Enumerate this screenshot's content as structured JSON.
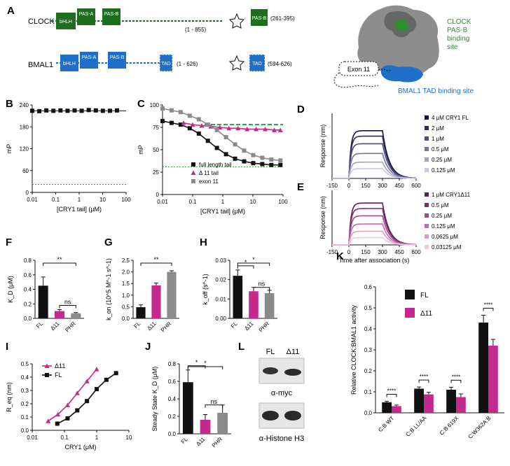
{
  "panels": {
    "A": {
      "letter": "A",
      "clock": {
        "label": "CLOCK",
        "domains": [
          "bHLH",
          "PAS-A",
          "PAS-B"
        ],
        "range": "(1 - 855)",
        "inset_domain": "PAS-B",
        "inset_range": "(261-395)"
      },
      "bmal1": {
        "label": "BMAL1",
        "domains": [
          "bHLH",
          "PAS-A",
          "PAS-B",
          "TAD"
        ],
        "range": "(1 - 626)",
        "inset_domain": "TAD",
        "inset_range": "(594-626)"
      },
      "structure": {
        "clock_site": [
          "CLOCK",
          "PAS-B",
          "binding",
          "site"
        ],
        "exon": "Exon 11",
        "bmal_site": "BMAL1 TAD binding site"
      }
    },
    "B": {
      "letter": "B"
    },
    "C": {
      "letter": "C"
    },
    "D": {
      "letter": "D"
    },
    "E": {
      "letter": "E"
    },
    "F": {
      "letter": "F"
    },
    "G": {
      "letter": "G"
    },
    "H": {
      "letter": "H"
    },
    "I": {
      "letter": "I"
    },
    "J": {
      "letter": "J"
    },
    "K": {
      "letter": "K"
    },
    "L": {
      "letter": "L",
      "cols": [
        "FL",
        "Δ11"
      ],
      "blot1": "α-myc",
      "blot2": "α-Histone H3"
    }
  },
  "colors": {
    "black": "#111111",
    "magenta": "#c42a8e",
    "gray": "#8a8a8a",
    "green": "#2f9a3a",
    "blue": "#2f7fd8",
    "clock_green": "#1f6e1f",
    "bmal_blue": "#1f6fc8"
  },
  "chart_data": [
    {
      "id": "B",
      "type": "scatter",
      "xscale": "log",
      "xlim": [
        0.01,
        100
      ],
      "ylim": [
        0,
        240
      ],
      "xticks": [
        "0.01",
        "0.1",
        "1",
        "10",
        "100"
      ],
      "yticks": [
        "0",
        "60",
        "120",
        "180",
        "240"
      ],
      "xlabel": "[CRY1 tail] (μM)",
      "ylabel": "mP",
      "series": [
        {
          "color": "#111111",
          "marker": "square",
          "x": [
            0.01,
            0.02,
            0.04,
            0.08,
            0.16,
            0.32,
            0.64,
            1.28,
            2.56,
            5.12,
            10.24,
            20.48,
            40.96
          ],
          "y": [
            224,
            223,
            225,
            224,
            225,
            224,
            225,
            224,
            226,
            225,
            224,
            224,
            225
          ]
        }
      ],
      "fit_line": {
        "y": 224,
        "color": "#111111"
      },
      "ref_line": {
        "y": 22,
        "color": "#2f7fd8",
        "style": "dotted"
      }
    },
    {
      "id": "C",
      "type": "scatter",
      "xscale": "log",
      "xlim": [
        0.01,
        100
      ],
      "ylim": [
        0,
        100
      ],
      "xticks": [
        "0.01",
        "0.1",
        "1",
        "10",
        "100"
      ],
      "yticks": [
        "0",
        "25",
        "50",
        "75",
        "100"
      ],
      "xlabel": "[CRY1 tail] (μM)",
      "ylabel": "mP",
      "series": [
        {
          "name": "full length tail",
          "color": "#111111",
          "marker": "square",
          "x": [
            0.01,
            0.02,
            0.04,
            0.08,
            0.16,
            0.32,
            0.64,
            1.28,
            2.56,
            5.12,
            10.24,
            20.48,
            40.96,
            81.92
          ],
          "y": [
            82,
            80,
            78,
            74,
            68,
            60,
            52,
            45,
            40,
            37,
            35,
            34,
            33,
            33
          ]
        },
        {
          "name": "Δ 11 tail",
          "color": "#c42a8e",
          "marker": "triangle",
          "x": [
            0.05,
            0.1,
            0.2,
            0.4,
            0.8,
            1.6,
            3.2,
            6.4,
            12.8,
            25.6,
            51.2,
            82
          ],
          "y": [
            80,
            78,
            77,
            76,
            75,
            74,
            74,
            73,
            73,
            73,
            72,
            72
          ]
        },
        {
          "name": "exon 11",
          "color": "#8a8a8a",
          "marker": "square",
          "x": [
            0.01,
            0.02,
            0.04,
            0.08,
            0.16,
            0.32,
            0.64,
            1.28,
            2.56,
            5.12,
            10.24,
            20.48,
            40.96,
            81.92
          ],
          "y": [
            96,
            94,
            92,
            88,
            84,
            78,
            72,
            64,
            56,
            49,
            44,
            41,
            39,
            38
          ]
        }
      ],
      "ref_line": {
        "y": 31,
        "color": "#2f9a3a",
        "style": "dotted"
      },
      "dashed_line": {
        "y": 78,
        "color": "#2f9a3a"
      }
    },
    {
      "id": "D",
      "type": "line",
      "xlim": [
        -150,
        600
      ],
      "ylim": [
        0,
        0.6
      ],
      "xticks": [
        "-150",
        "0",
        "150",
        "300",
        "450",
        "600"
      ],
      "yticks": [],
      "xlabel": "",
      "ylabel": "Response (nm)",
      "series": [
        {
          "name": "4 μM CRY1 FL",
          "color": "#14133f",
          "plateau": 0.44
        },
        {
          "name": "2 μM",
          "color": "#2e2c5c",
          "plateau": 0.39
        },
        {
          "name": "1 μM",
          "color": "#4d4a82",
          "plateau": 0.32
        },
        {
          "name": "0.5 μM",
          "color": "#7673a8",
          "plateau": 0.23
        },
        {
          "name": "0.25 μM",
          "color": "#a3a1c8",
          "plateau": 0.15
        },
        {
          "name": "0.125 μM",
          "color": "#c9c8e2",
          "plateau": 0.09
        }
      ]
    },
    {
      "id": "E",
      "type": "line",
      "xlim": [
        -150,
        600
      ],
      "ylim": [
        0,
        0.6
      ],
      "xticks": [
        "-150",
        "0",
        "150",
        "300",
        "450",
        "600"
      ],
      "yticks": [],
      "xlabel": "Time after association (s)",
      "ylabel": "Response (nm)",
      "series": [
        {
          "name": "1 μM CRY1Δ11",
          "color": "#5a1f4a",
          "plateau": 0.46
        },
        {
          "name": "0.5 μM",
          "color": "#7e2c6b",
          "plateau": 0.4
        },
        {
          "name": "0.25 μM",
          "color": "#a2468d",
          "plateau": 0.32
        },
        {
          "name": "0.125 μM",
          "color": "#c26aae",
          "plateau": 0.23
        },
        {
          "name": "0.0625 μM",
          "color": "#d99bcb",
          "plateau": 0.15
        },
        {
          "name": "0.03125 μM",
          "color": "#ecc8e3",
          "plateau": 0.08
        }
      ]
    },
    {
      "id": "F",
      "type": "bar",
      "ylim": [
        0,
        0.8
      ],
      "yticks": [
        "0.0",
        "0.2",
        "0.4",
        "0.6",
        "0.8"
      ],
      "ylabel": "K_D (μM)",
      "categories": [
        "FL",
        "Δ11",
        "PHR"
      ],
      "values": [
        0.45,
        0.1,
        0.07
      ],
      "errors": [
        0.12,
        0.02,
        0.01
      ],
      "colors": [
        "#111111",
        "#c42a8e",
        "#8a8a8a"
      ],
      "sig": [
        {
          "from": 0,
          "to": 2,
          "label": "**"
        },
        {
          "from": 1,
          "to": 2,
          "label": "ns"
        }
      ]
    },
    {
      "id": "G",
      "type": "bar",
      "ylim": [
        0,
        2.5
      ],
      "yticks": [
        "0.0",
        "0.5",
        "1.0",
        "1.5",
        "2.0",
        "2.5"
      ],
      "ylabel": "k_on (10^5 M^-1 s^-1)",
      "categories": [
        "FL",
        "Δ11",
        "PHR"
      ],
      "values": [
        0.48,
        1.42,
        2.0
      ],
      "errors": [
        0.1,
        0.1,
        0.05
      ],
      "colors": [
        "#111111",
        "#c42a8e",
        "#8a8a8a"
      ],
      "sig": [
        {
          "from": 0,
          "to": 2,
          "label": "**"
        }
      ]
    },
    {
      "id": "H",
      "type": "bar",
      "ylim": [
        0,
        0.03
      ],
      "yticks": [
        "0.00",
        "0.01",
        "0.02",
        "0.03"
      ],
      "ylabel": "k_off (s^-1)",
      "categories": [
        "FL",
        "Δ11",
        "PHR"
      ],
      "values": [
        0.022,
        0.014,
        0.013
      ],
      "errors": [
        0.003,
        0.002,
        0.0015
      ],
      "colors": [
        "#111111",
        "#c42a8e",
        "#8a8a8a"
      ],
      "sig": [
        {
          "from": 0,
          "to": 2,
          "label": "*"
        },
        {
          "from": 0,
          "to": 1,
          "label": "*"
        },
        {
          "from": 1,
          "to": 2,
          "label": "ns"
        }
      ]
    },
    {
      "id": "I",
      "type": "line",
      "xscale": "log",
      "xlim": [
        0.01,
        10
      ],
      "ylim": [
        0,
        0.5
      ],
      "xticks": [
        "0.01",
        "0.1",
        "1",
        "10"
      ],
      "yticks": [
        "0.0",
        "0.1",
        "0.2",
        "0.3",
        "0.4",
        "0.5"
      ],
      "xlabel": "CRY1 (μM)",
      "ylabel": "R_eq (nm)",
      "series": [
        {
          "name": "Δ11",
          "color": "#c42a8e",
          "marker": "triangle",
          "x": [
            0.03125,
            0.0625,
            0.125,
            0.25,
            0.5,
            1
          ],
          "y": [
            0.07,
            0.12,
            0.19,
            0.28,
            0.37,
            0.46
          ]
        },
        {
          "name": "FL",
          "color": "#111111",
          "marker": "square",
          "x": [
            0.06,
            0.125,
            0.25,
            0.5,
            1,
            2,
            4
          ],
          "y": [
            0.05,
            0.09,
            0.15,
            0.22,
            0.31,
            0.38,
            0.43
          ]
        }
      ]
    },
    {
      "id": "J",
      "type": "bar",
      "ylim": [
        0,
        0.8
      ],
      "yticks": [
        "0.0",
        "0.2",
        "0.4",
        "0.6",
        "0.8"
      ],
      "ylabel": "Steady State K_D (μM)",
      "categories": [
        "FL",
        "Δ11",
        "PHR"
      ],
      "values": [
        0.59,
        0.16,
        0.24
      ],
      "errors": [
        0.14,
        0.06,
        0.09
      ],
      "colors": [
        "#111111",
        "#c42a8e",
        "#8a8a8a"
      ],
      "sig": [
        {
          "from": 0,
          "to": 2,
          "label": "*"
        },
        {
          "from": 0,
          "to": 1,
          "label": "*"
        },
        {
          "from": 1,
          "to": 2,
          "label": "ns"
        }
      ]
    },
    {
      "id": "K",
      "type": "bar",
      "ylim": [
        0,
        0.6
      ],
      "yticks": [
        "0.0",
        "0.1",
        "0.2",
        "0.3",
        "0.4",
        "0.5",
        "0.6"
      ],
      "ylabel": "Relative CLOCK:BMAL1 activity",
      "categories": [
        "C:B WT",
        "C:B LL/AA",
        "C:B 619X",
        "C:W362A:B"
      ],
      "series": [
        {
          "name": "FL",
          "color": "#111111",
          "values": [
            0.05,
            0.115,
            0.11,
            0.43
          ],
          "errors": [
            0.005,
            0.008,
            0.012,
            0.035
          ]
        },
        {
          "name": "Δ11",
          "color": "#c42a8e",
          "values": [
            0.032,
            0.088,
            0.075,
            0.32
          ],
          "errors": [
            0.005,
            0.01,
            0.015,
            0.03
          ]
        }
      ],
      "sig": [
        "****",
        "****",
        "****",
        "****"
      ]
    }
  ]
}
